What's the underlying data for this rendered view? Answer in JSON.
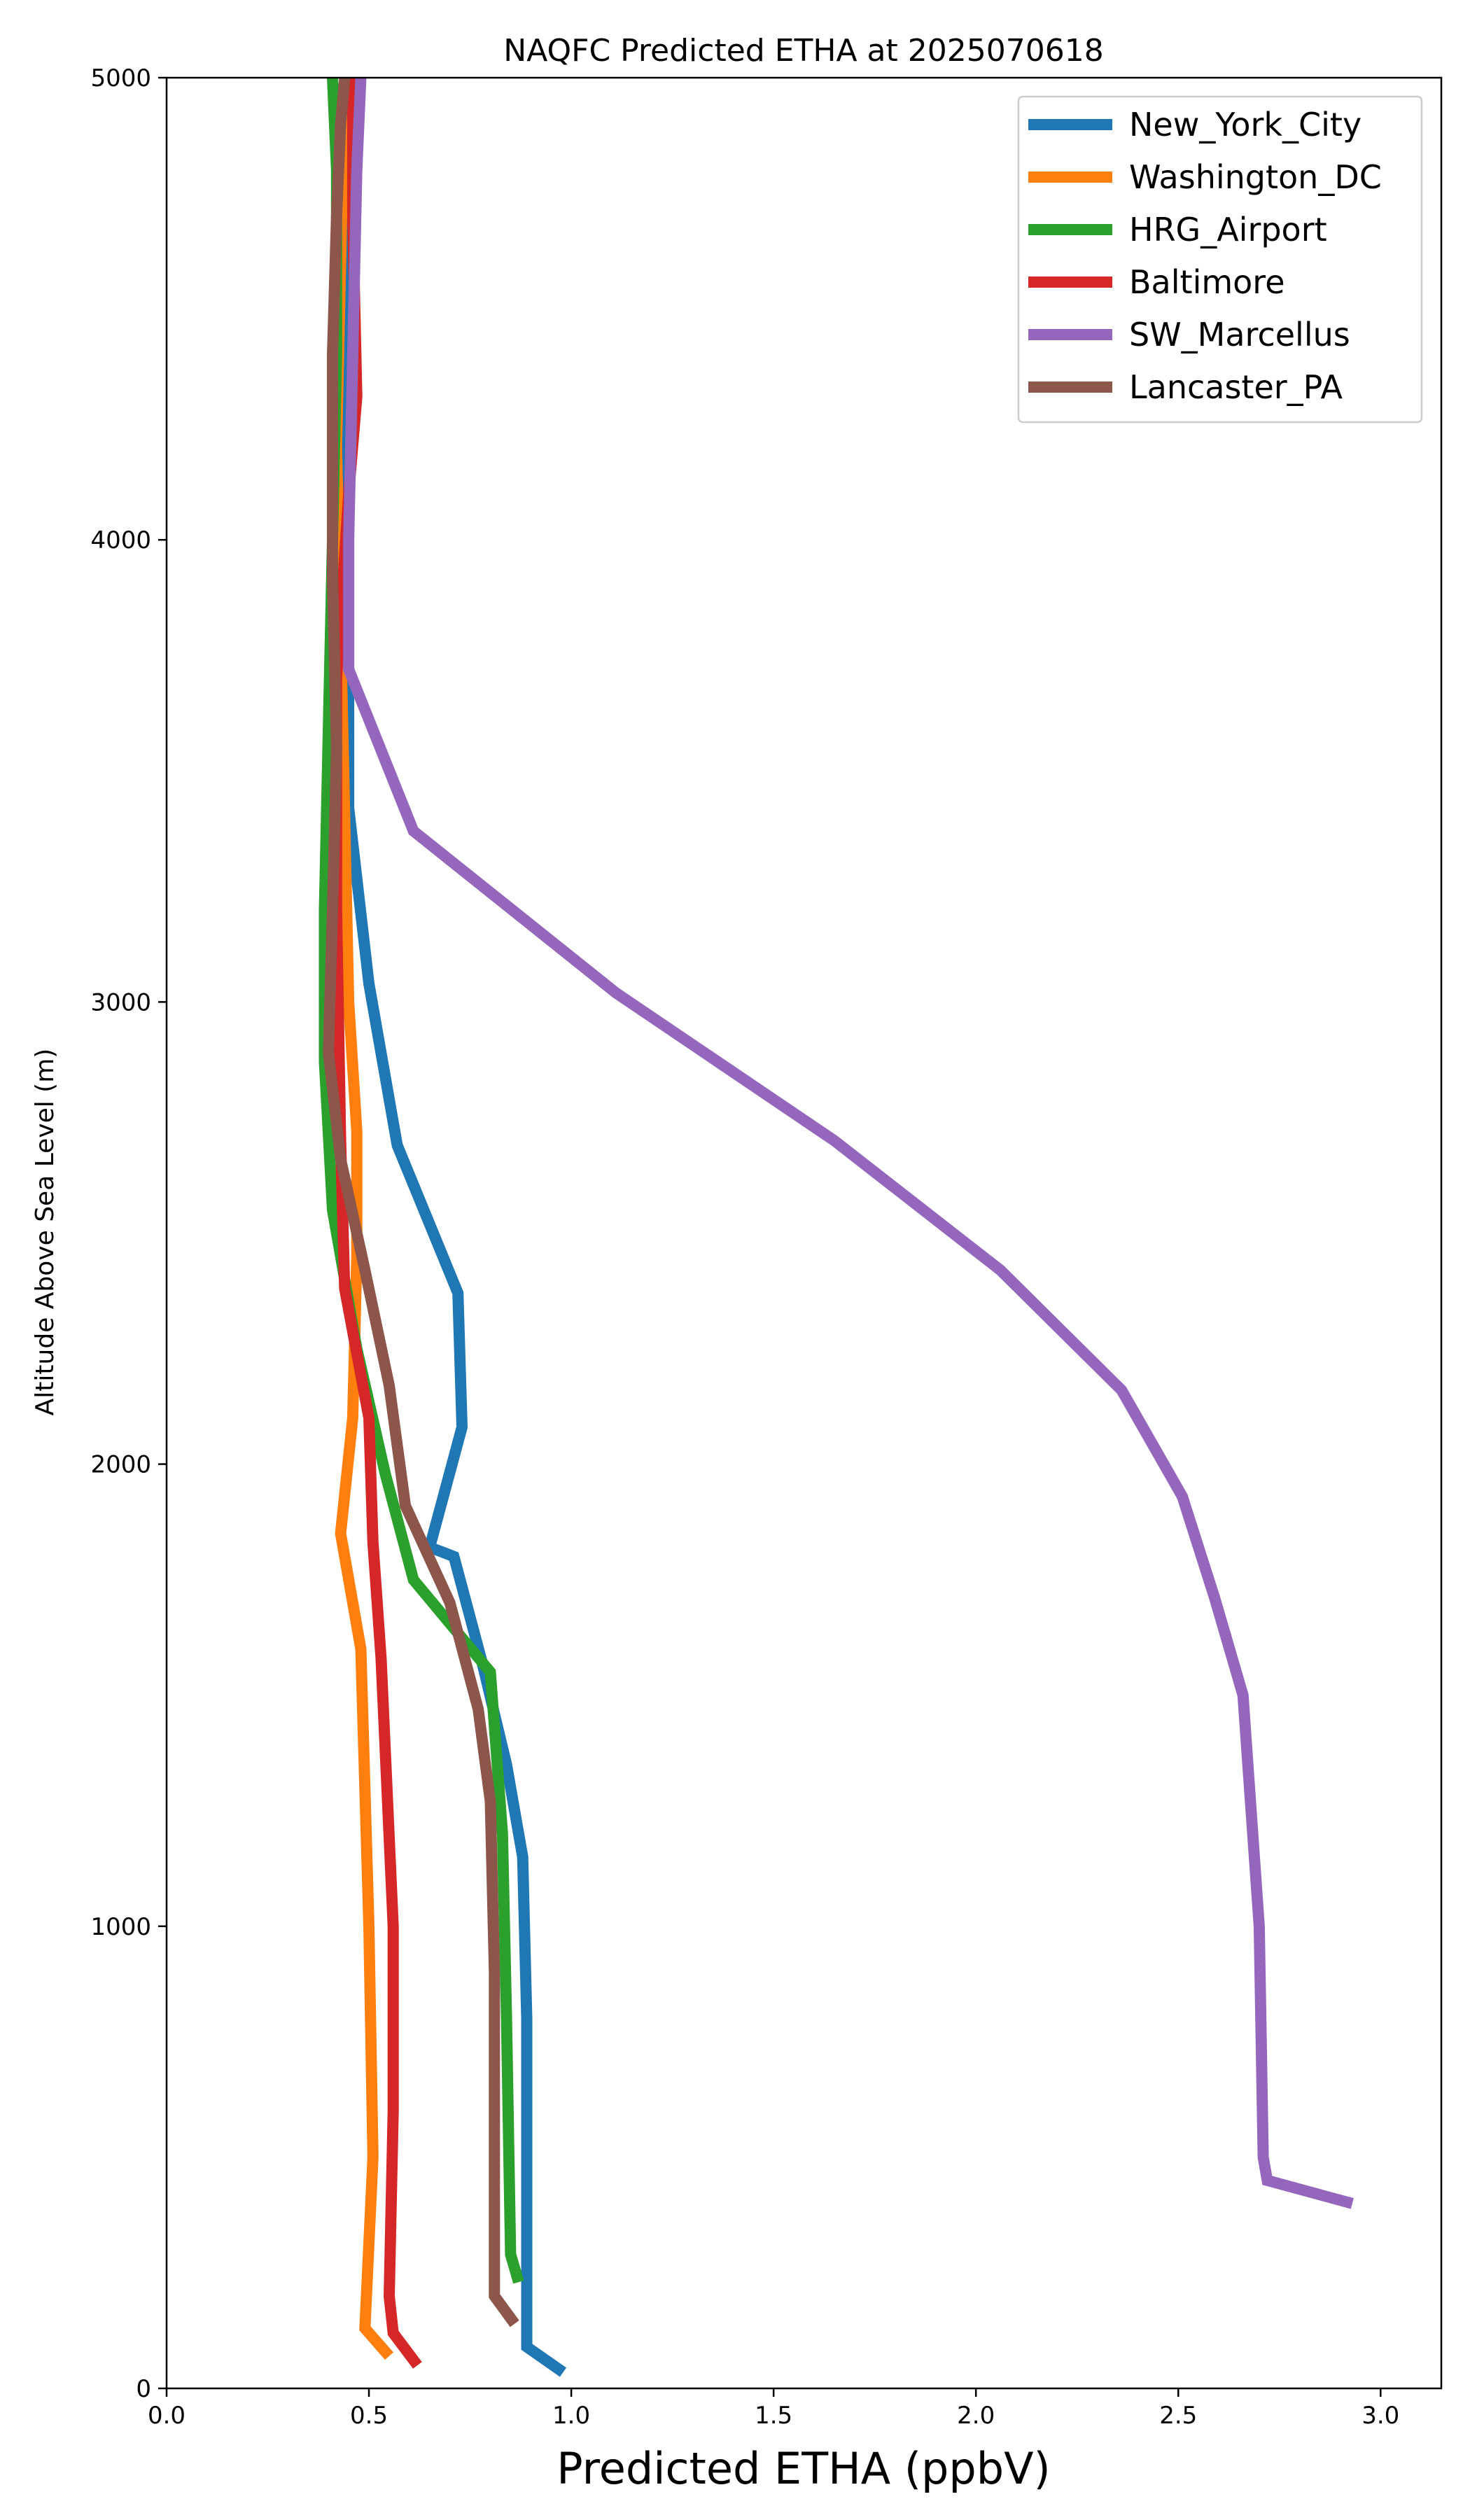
{
  "chart_data": {
    "type": "line",
    "title": "NAQFC Predicted ETHA at 2025070618",
    "xlabel": "Predicted ETHA (ppbV)",
    "ylabel": "Altitude Above Sea Level (m)",
    "xlim": [
      0.0,
      3.15
    ],
    "ylim": [
      0,
      5000
    ],
    "xticks": [
      0.0,
      0.5,
      1.0,
      1.5,
      2.0,
      2.5,
      3.0
    ],
    "xtick_labels": [
      "0.0",
      "0.5",
      "1.0",
      "1.5",
      "2.0",
      "2.5",
      "3.0"
    ],
    "yticks": [
      0,
      1000,
      2000,
      3000,
      4000,
      5000
    ],
    "ytick_labels": [
      "0",
      "1000",
      "2000",
      "3000",
      "4000",
      "5000"
    ],
    "grid": false,
    "legend_position": "top-right",
    "series": [
      {
        "name": "New_York_City",
        "color": "#1f77b4",
        "x": [
          0.98,
          0.89,
          0.89,
          0.89,
          0.88,
          0.84,
          0.78,
          0.71,
          0.65,
          0.73,
          0.72,
          0.57,
          0.5,
          0.45,
          0.45,
          0.45,
          0.44,
          0.44,
          0.44
        ],
        "y": [
          35,
          90,
          400,
          800,
          1150,
          1350,
          1570,
          1800,
          1820,
          2080,
          2370,
          2690,
          3040,
          3420,
          3700,
          4000,
          4300,
          4700,
          5000
        ]
      },
      {
        "name": "Washington_DC",
        "color": "#ff7f0e",
        "x": [
          0.55,
          0.49,
          0.51,
          0.5,
          0.48,
          0.43,
          0.46,
          0.47,
          0.47,
          0.45,
          0.44,
          0.43,
          0.42,
          0.43,
          0.44
        ],
        "y": [
          70,
          130,
          500,
          1000,
          1600,
          1850,
          2100,
          2450,
          2720,
          3000,
          3400,
          3800,
          4200,
          4600,
          5000
        ]
      },
      {
        "name": "HRG_Airport",
        "color": "#2ca02c",
        "x": [
          0.87,
          0.85,
          0.84,
          0.83,
          0.8,
          0.61,
          0.54,
          0.47,
          0.41,
          0.39,
          0.39,
          0.4,
          0.41,
          0.42,
          0.42,
          0.41
        ],
        "y": [
          230,
          290,
          800,
          1200,
          1550,
          1750,
          1980,
          2250,
          2550,
          2870,
          3200,
          3600,
          4000,
          4400,
          4800,
          5000
        ]
      },
      {
        "name": "Baltimore",
        "color": "#d62728",
        "x": [
          0.62,
          0.56,
          0.55,
          0.56,
          0.56,
          0.53,
          0.51,
          0.5,
          0.44,
          0.43,
          0.42,
          0.42,
          0.45,
          0.47,
          0.46,
          0.46
        ],
        "y": [
          50,
          120,
          200,
          600,
          1000,
          1580,
          1830,
          2100,
          2380,
          2700,
          3200,
          3700,
          4100,
          4310,
          4700,
          5000
        ]
      },
      {
        "name": "SW_Marcellus",
        "color": "#9467bd",
        "x": [
          2.93,
          2.72,
          2.71,
          2.7,
          2.66,
          2.59,
          2.51,
          2.36,
          2.06,
          1.65,
          1.11,
          0.61,
          0.45,
          0.45,
          0.46,
          0.47,
          0.48
        ],
        "y": [
          400,
          450,
          500,
          1000,
          1500,
          1710,
          1930,
          2160,
          2420,
          2700,
          3020,
          3370,
          3720,
          4000,
          4400,
          4800,
          5000
        ]
      },
      {
        "name": "Lancaster_PA",
        "color": "#8c564b",
        "x": [
          0.86,
          0.81,
          0.81,
          0.81,
          0.8,
          0.77,
          0.7,
          0.59,
          0.55,
          0.49,
          0.43,
          0.4,
          0.41,
          0.42,
          0.41,
          0.41,
          0.42,
          0.43,
          0.44
        ],
        "y": [
          140,
          200,
          500,
          900,
          1270,
          1470,
          1700,
          1910,
          2170,
          2420,
          2660,
          2890,
          3200,
          3550,
          3920,
          4400,
          4700,
          4900,
          5000
        ]
      }
    ]
  }
}
